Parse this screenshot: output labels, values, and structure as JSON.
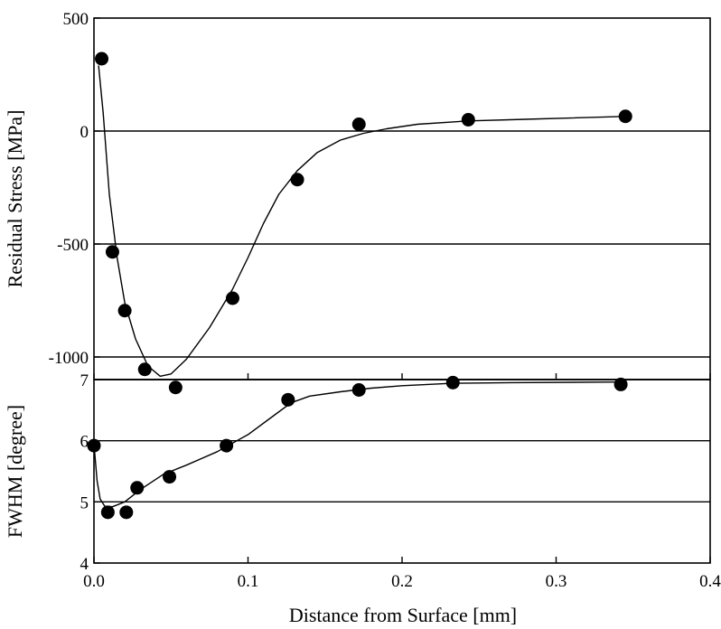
{
  "chart_data": [
    {
      "type": "scatter",
      "ylabel": "Residual Stress [MPa]",
      "xlim": [
        0,
        0.4
      ],
      "ylim": [
        -1100,
        500
      ],
      "xticks": [
        "0.0",
        "0.1",
        "0.2",
        "0.3",
        "0.4"
      ],
      "yticks": [
        "500",
        "0",
        "-500",
        "-1000"
      ],
      "grid_lines_y": [
        0,
        -500,
        -1000
      ],
      "series": [
        {
          "points": [
            {
              "x": 0.005,
              "y": 320
            },
            {
              "x": 0.012,
              "y": -535
            },
            {
              "x": 0.02,
              "y": -795
            },
            {
              "x": 0.033,
              "y": -1055
            },
            {
              "x": 0.053,
              "y": -1135
            },
            {
              "x": 0.09,
              "y": -740
            },
            {
              "x": 0.132,
              "y": -215
            },
            {
              "x": 0.172,
              "y": 30
            },
            {
              "x": 0.243,
              "y": 50
            },
            {
              "x": 0.345,
              "y": 65
            }
          ],
          "fit_curve": [
            [
              0.003,
              290
            ],
            [
              0.006,
              80
            ],
            [
              0.01,
              -280
            ],
            [
              0.015,
              -560
            ],
            [
              0.02,
              -760
            ],
            [
              0.027,
              -920
            ],
            [
              0.035,
              -1040
            ],
            [
              0.043,
              -1085
            ],
            [
              0.05,
              -1075
            ],
            [
              0.06,
              -1010
            ],
            [
              0.075,
              -870
            ],
            [
              0.09,
              -700
            ],
            [
              0.1,
              -560
            ],
            [
              0.11,
              -410
            ],
            [
              0.12,
              -280
            ],
            [
              0.132,
              -175
            ],
            [
              0.145,
              -95
            ],
            [
              0.16,
              -40
            ],
            [
              0.175,
              -10
            ],
            [
              0.19,
              10
            ],
            [
              0.21,
              30
            ],
            [
              0.243,
              45
            ],
            [
              0.28,
              52
            ],
            [
              0.345,
              65
            ]
          ]
        }
      ]
    },
    {
      "type": "scatter",
      "xlabel": "Distance from Surface [mm]",
      "ylabel": "FWHM [degree]",
      "xlim": [
        0,
        0.4
      ],
      "ylim": [
        4,
        7
      ],
      "xticks": [
        "0.0",
        "0.1",
        "0.2",
        "0.3",
        "0.4"
      ],
      "yticks": [
        "7",
        "6",
        "5",
        "4"
      ],
      "grid_lines_y": [
        7,
        6,
        5
      ],
      "series": [
        {
          "points": [
            {
              "x": 0.0,
              "y": 5.92
            },
            {
              "x": 0.009,
              "y": 4.83
            },
            {
              "x": 0.021,
              "y": 4.83
            },
            {
              "x": 0.028,
              "y": 5.23
            },
            {
              "x": 0.049,
              "y": 5.41
            },
            {
              "x": 0.086,
              "y": 5.92
            },
            {
              "x": 0.126,
              "y": 6.67
            },
            {
              "x": 0.172,
              "y": 6.83
            },
            {
              "x": 0.233,
              "y": 6.95
            },
            {
              "x": 0.342,
              "y": 6.92
            }
          ],
          "fit_curve": [
            [
              0.0,
              5.95
            ],
            [
              0.002,
              5.35
            ],
            [
              0.004,
              5.05
            ],
            [
              0.007,
              4.93
            ],
            [
              0.012,
              4.92
            ],
            [
              0.02,
              5.0
            ],
            [
              0.03,
              5.2
            ],
            [
              0.045,
              5.45
            ],
            [
              0.06,
              5.6
            ],
            [
              0.08,
              5.82
            ],
            [
              0.1,
              6.1
            ],
            [
              0.115,
              6.38
            ],
            [
              0.128,
              6.62
            ],
            [
              0.14,
              6.73
            ],
            [
              0.16,
              6.8
            ],
            [
              0.18,
              6.86
            ],
            [
              0.2,
              6.9
            ],
            [
              0.233,
              6.94
            ],
            [
              0.27,
              6.95
            ],
            [
              0.342,
              6.96
            ]
          ]
        }
      ]
    }
  ]
}
